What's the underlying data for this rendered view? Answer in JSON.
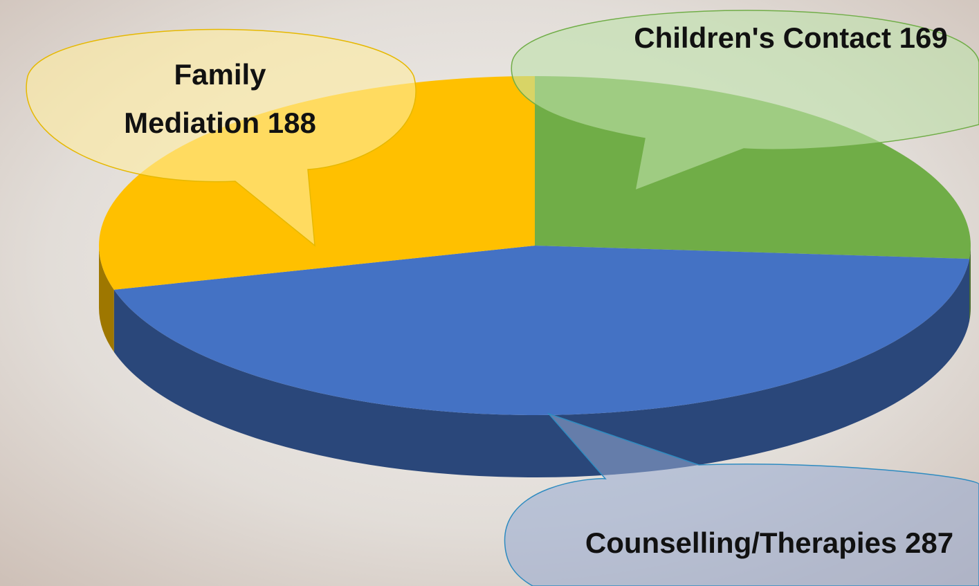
{
  "chart_data": {
    "type": "pie3d",
    "categories": [
      "Children's Contact",
      "Counselling/Therapies",
      "Family Mediation"
    ],
    "values": [
      169,
      287,
      188
    ],
    "colors": [
      "#70ad47",
      "#4472c4",
      "#ffc000"
    ]
  }
}
